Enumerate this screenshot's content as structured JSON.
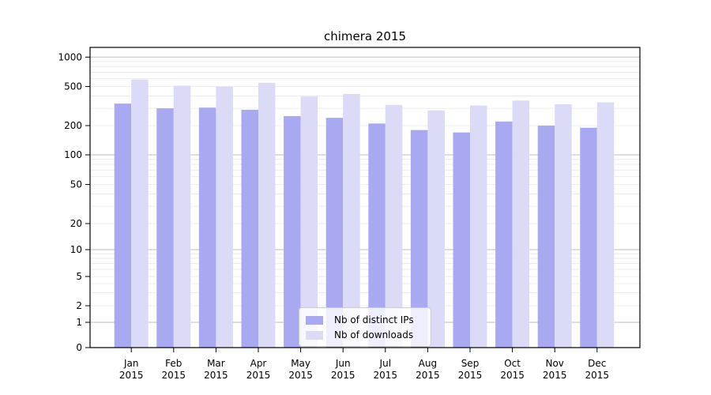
{
  "window": {
    "background": "#ffffff"
  },
  "chart_data": {
    "type": "bar",
    "title": "chimera 2015",
    "categories": [
      "Jan 2015",
      "Feb 2015",
      "Mar 2015",
      "Apr 2015",
      "May 2015",
      "Jun 2015",
      "Jul 2015",
      "Aug 2015",
      "Sep 2015",
      "Oct 2015",
      "Nov 2015",
      "Dec 2015"
    ],
    "month_labels": [
      "Jan",
      "Feb",
      "Mar",
      "Apr",
      "May",
      "Jun",
      "Jul",
      "Aug",
      "Sep",
      "Oct",
      "Nov",
      "Dec"
    ],
    "year_label": "2015",
    "series": [
      {
        "name": "Nb of distinct IPs",
        "color": "#a9a9f1",
        "values": [
          335,
          300,
          305,
          290,
          250,
          240,
          210,
          180,
          170,
          220,
          200,
          190
        ]
      },
      {
        "name": "Nb of downloads",
        "color": "#dbdbf8",
        "values": [
          590,
          510,
          500,
          545,
          395,
          420,
          325,
          285,
          320,
          360,
          330,
          345
        ]
      }
    ],
    "yscale": "symlog",
    "y_tick_values": [
      0,
      1,
      2,
      5,
      10,
      20,
      50,
      100,
      200,
      500,
      1000
    ],
    "y_tick_labels": [
      "0",
      "1",
      "2",
      "5",
      "10",
      "20",
      "50",
      "100",
      "200",
      "500",
      "1000"
    ],
    "ylim": [
      0,
      1400
    ],
    "grid": true,
    "legend_position": "lower center",
    "colors": {
      "major_gridline": "#bdbdbd",
      "minor_gridline": "#e8e8e8",
      "spine": "#000000",
      "legend_border": "#cccccc"
    }
  }
}
